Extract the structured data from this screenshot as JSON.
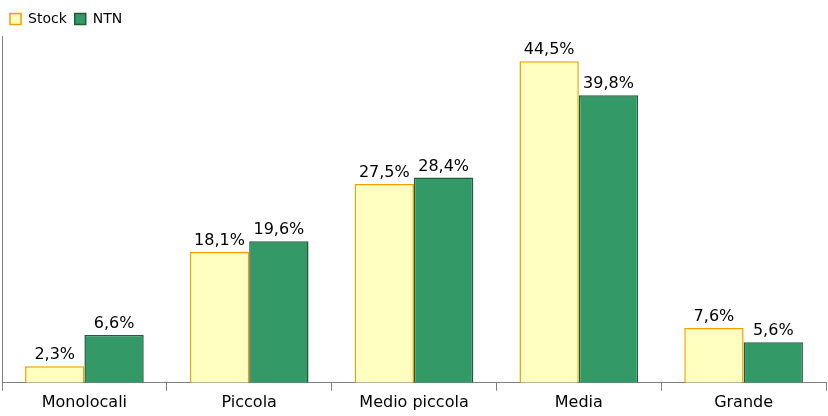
{
  "chart_data": {
    "type": "bar",
    "categories": [
      "Monolocali",
      "Piccola",
      "Medio piccola",
      "Media",
      "Grande"
    ],
    "series": [
      {
        "name": "Stock",
        "color": "#ffffc0",
        "values": [
          2.3,
          18.1,
          27.5,
          44.5,
          7.6
        ],
        "value_labels": [
          "2,3%",
          "18,1%",
          "27,5%",
          "44,5%",
          "7,6%"
        ]
      },
      {
        "name": "NTN",
        "color": "#339966",
        "values": [
          6.6,
          19.6,
          28.4,
          39.8,
          5.6
        ],
        "value_labels": [
          "6,6%",
          "19,6%",
          "28,4%",
          "39,8%",
          "5,6%"
        ]
      }
    ],
    "ylim": [
      0,
      48
    ],
    "grid": false,
    "legend": "top-left",
    "data_labels": true,
    "tick_labels": "x"
  }
}
